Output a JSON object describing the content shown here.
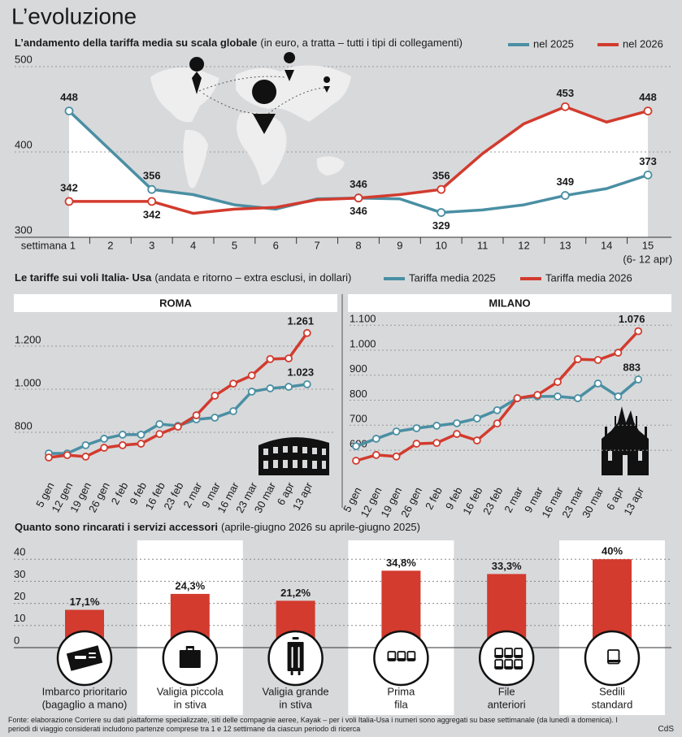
{
  "title": "L’evoluzione",
  "chart_data": [
    {
      "type": "line",
      "title": "L’andamento della tariffa media su scala globale",
      "subtitle": "(in euro, a tratta – tutti i tipi di collegamenti)",
      "categories": [
        "settimana 1",
        "2",
        "3",
        "4",
        "5",
        "6",
        "7",
        "8",
        "9",
        "10",
        "11",
        "12",
        "13",
        "14",
        "15"
      ],
      "annotation": "(6- 12 apr)",
      "markers": "labeled",
      "ylim": [
        300,
        510
      ],
      "yticks": [
        300,
        400,
        500
      ],
      "series": [
        {
          "name": "nel 2025",
          "color": "#4a8fa3",
          "values": [
            448,
            402,
            356,
            350,
            338,
            333,
            345,
            346,
            345,
            329,
            332,
            338,
            349,
            357,
            373
          ],
          "value_labels": [
            "448",
            null,
            "356",
            null,
            null,
            null,
            null,
            "346",
            null,
            "329",
            null,
            null,
            "349",
            null,
            "373"
          ]
        },
        {
          "name": "nel 2026",
          "color": "#d23b2e",
          "values": [
            342,
            342,
            342,
            328,
            333,
            335,
            344,
            346,
            350,
            356,
            398,
            433,
            453,
            435,
            448
          ],
          "value_labels": [
            "342",
            null,
            "342",
            null,
            null,
            null,
            null,
            "346",
            null,
            "356",
            null,
            null,
            "453",
            null,
            "448"
          ]
        }
      ]
    },
    {
      "type": "line",
      "title": "Le tariffe sui voli Italia- Usa",
      "subtitle": "(andata e ritorno – extra esclusi, in dollari)",
      "panel_title": "ROMA",
      "markers": "all",
      "categories": [
        "5 gen",
        "12 gen",
        "19 gen",
        "26 gen",
        "2 feb",
        "9 feb",
        "16 feb",
        "23 feb",
        "2 mar",
        "9 mar",
        "16 mar",
        "23 mar",
        "30 mar",
        "6 apr",
        "13 apr"
      ],
      "ylim": [
        600,
        1300
      ],
      "yticks": [
        800,
        {
          "value": 1000,
          "label": "1.000"
        },
        {
          "value": 1200,
          "label": "1.200"
        }
      ],
      "series": [
        {
          "name": "Tariffa media 2025",
          "color": "#4a8fa3",
          "values": [
            702,
            702,
            740,
            770,
            789,
            789,
            838,
            830,
            860,
            868,
            898,
            989,
            1004,
            1011,
            1023
          ],
          "value_labels": [
            null,
            null,
            null,
            null,
            null,
            null,
            null,
            null,
            null,
            null,
            null,
            null,
            null,
            null,
            "1.023"
          ]
        },
        {
          "name": "Tariffa media 2026",
          "color": "#d23b2e",
          "values": [
            683,
            694,
            687,
            728,
            740,
            747,
            792,
            826,
            879,
            970,
            1026,
            1064,
            1140,
            1143,
            1261
          ],
          "value_labels": [
            null,
            null,
            null,
            null,
            null,
            null,
            null,
            null,
            null,
            null,
            null,
            null,
            null,
            null,
            "1.261"
          ]
        }
      ]
    },
    {
      "type": "line",
      "panel_title": "MILANO",
      "markers": "all",
      "categories": [
        "5 gen",
        "12 gen",
        "19 gen",
        "26 gen",
        "2 feb",
        "9 feb",
        "16 feb",
        "23 feb",
        "2 mar",
        "9 mar",
        "16 mar",
        "23 mar",
        "30 mar",
        "6 apr",
        "13 apr"
      ],
      "ylim": [
        480,
        1130
      ],
      "yticks": [
        600,
        700,
        800,
        900,
        {
          "value": 1000,
          "label": "1.000"
        },
        {
          "value": 1100,
          "label": "1.100"
        }
      ],
      "series": [
        {
          "color": "#4a8fa3",
          "values": [
            616,
            646,
            675,
            688,
            698,
            708,
            727,
            760,
            808,
            815,
            815,
            808,
            867,
            815,
            883
          ],
          "value_labels": [
            null,
            null,
            null,
            null,
            null,
            null,
            null,
            null,
            null,
            null,
            null,
            null,
            null,
            null,
            "883"
          ]
        },
        {
          "color": "#d23b2e",
          "values": [
            558,
            581,
            575,
            626,
            629,
            665,
            639,
            707,
            808,
            821,
            873,
            964,
            961,
            990,
            1076
          ],
          "value_labels": [
            null,
            null,
            null,
            null,
            null,
            null,
            null,
            null,
            null,
            null,
            null,
            null,
            null,
            null,
            "1.076"
          ]
        }
      ]
    },
    {
      "type": "bar",
      "title": "Quanto sono rincarati i servizi accessori",
      "subtitle": "(aprile-giugno 2026 su aprile-giugno 2025)",
      "categories": [
        [
          "Imbarco prioritario",
          "(bagaglio a mano)"
        ],
        [
          "Valigia piccola",
          "in stiva"
        ],
        [
          "Valigia grande",
          "in stiva"
        ],
        [
          "Prima",
          "fila"
        ],
        [
          "File",
          "anteriori"
        ],
        [
          "Sedili",
          "standard"
        ]
      ],
      "values": [
        17.1,
        24.3,
        21.2,
        34.8,
        33.3,
        40
      ],
      "value_labels": [
        "17,1%",
        "24,3%",
        "21,2%",
        "34,8%",
        "33,3%",
        "40%"
      ],
      "color": "#d23b2e",
      "ylim": [
        0,
        45
      ],
      "yticks": [
        0,
        10,
        20,
        30,
        40
      ]
    }
  ],
  "source": "Fonte: elaborazione Corriere su dati piattaforme specializzate, siti delle compagnie aeree, Kayak – per i voli Italia-Usa i numeri sono aggregati su base settimanale (da lunedì a domenica). I periodi di viaggio considerati includono partenze comprese tra 1 e 12 settimane da ciascun periodo di ricerca",
  "credit": "CdS"
}
